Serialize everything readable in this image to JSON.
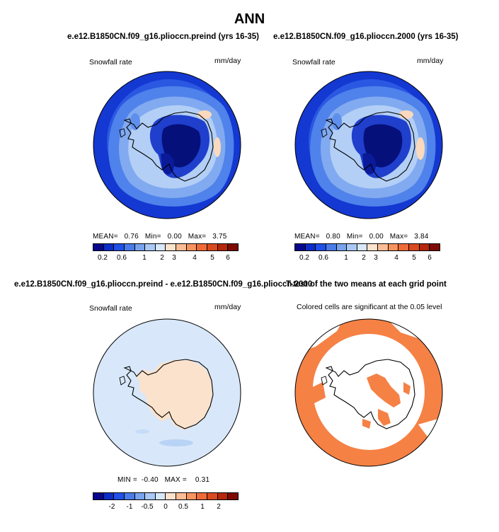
{
  "page": {
    "title": "ANN"
  },
  "panels": [
    {
      "case_title": "e.e12.B1850CN.f09_g16.plioccn.preind (yrs 16-35)",
      "variable": "Snowfall rate",
      "units": "mm/day",
      "stats": {
        "mean_label": "MEAN=",
        "mean": "0.76",
        "min_label": "Min=",
        "min": "0.00",
        "max_label": "Max=",
        "max": "3.75"
      },
      "colorbar_ticks": [
        "0.2",
        "0.6",
        "1",
        "2",
        "3",
        "4",
        "5",
        "6"
      ]
    },
    {
      "case_title": "e.e12.B1850CN.f09_g16.plioccn.2000 (yrs 16-35)",
      "variable": "Snowfall rate",
      "units": "mm/day",
      "stats": {
        "mean_label": "MEAN=",
        "mean": "0.80",
        "min_label": "Min=",
        "min": "0.00",
        "max_label": "Max=",
        "max": "3.84"
      },
      "colorbar_ticks": [
        "0.2",
        "0.6",
        "1",
        "2",
        "3",
        "4",
        "5",
        "6"
      ]
    },
    {
      "case_title": "e.e12.B1850CN.f09_g16.plioccn.preind - e.e12.B1850CN.f09_g16.plioccn.2000",
      "variable": "Snowfall rate",
      "units": "mm/day",
      "stats": {
        "min_label": "MIN =",
        "min": "-0.40",
        "max_label": "MAX =",
        "max": "0.31"
      },
      "colorbar_ticks": [
        "-2",
        "-1",
        "-0.5",
        "0",
        "0.5",
        "1",
        "2"
      ]
    },
    {
      "case_title": "T-test of the two means at each grid point",
      "subtitle": "Colored cells are significant at the 0.05 level"
    }
  ],
  "colors": {
    "abs_scale": [
      "#08088c",
      "#0c2dc8",
      "#2050e6",
      "#4a7be8",
      "#7aa3ee",
      "#a9c8f5",
      "#d8e8fa",
      "#fde3cc",
      "#fbbd96",
      "#f7935f",
      "#f06a38",
      "#db4a1e",
      "#b5280d",
      "#7d0a03"
    ],
    "diff_scale": [
      "#08088c",
      "#0c2dc8",
      "#2050e6",
      "#4a7be8",
      "#7aa3ee",
      "#a9c8f5",
      "#d8e8fa",
      "#fde3cc",
      "#fbbd96",
      "#f7935f",
      "#f06a38",
      "#db4a1e",
      "#b5280d",
      "#7d0a03"
    ],
    "significant": "#f58145"
  }
}
